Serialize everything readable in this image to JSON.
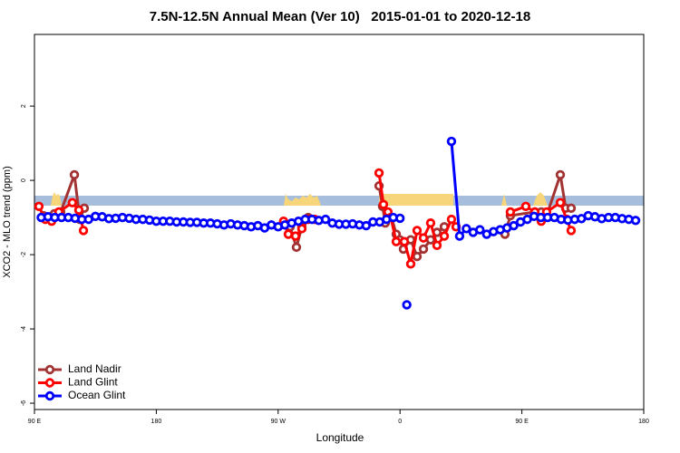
{
  "chart_data": {
    "type": "line",
    "title": "7.5N-12.5N Annual Mean (Ver 10)   2015-01-01 to 2020-12-18",
    "xlabel": "Longitude",
    "ylabel": "XCO2 - MLO trend (ppm)",
    "xlim": [
      90,
      540
    ],
    "xticks": [
      {
        "value": 90,
        "label": "90 E"
      },
      180,
      {
        "value": 270,
        "label": "90 W"
      },
      {
        "value": 360,
        "label": "0"
      },
      {
        "value": 450,
        "label": "90 E"
      },
      {
        "value": 540,
        "label": "180"
      }
    ],
    "ylim": [
      -6.17,
      3.93
    ],
    "yticks": [
      -6,
      -4,
      -2,
      0,
      2
    ],
    "legend": "bottom-left",
    "series": [
      {
        "name": "Land Nadir",
        "color": "#a33333",
        "x": [
          96.7,
          100,
          104.7,
          109.4,
          119.5,
          123.5,
          126.8,
          200,
          274,
          278.8,
          283.5,
          287.5,
          292.2,
          320,
          344.5,
          347.1,
          349.1,
          353.8,
          357.2,
          359.8,
          362.5,
          367.9,
          372.6,
          377.3,
          382.6,
          387.3,
          392.7,
          420,
          437.5,
          441.5,
          459.6,
          464.3,
          468.3,
          478.4,
          482.4,
          486.4
        ],
        "values": [
          -0.95,
          -1.0,
          -0.9,
          -0.85,
          0.15,
          -1.05,
          -0.75,
          null,
          -1.15,
          -1.25,
          -1.8,
          -1.25,
          -1.0,
          null,
          -0.15,
          -0.7,
          -1.15,
          -1.0,
          -1.45,
          -1.6,
          -1.85,
          -1.6,
          -2.05,
          -1.85,
          -1.6,
          -1.4,
          -1.25,
          null,
          -1.45,
          -0.95,
          -0.85,
          -0.85,
          -0.95,
          0.15,
          -0.75,
          -0.75
        ]
      },
      {
        "name": "Land Glint",
        "color": "#ff0000",
        "x": [
          93.3,
          98,
          102.7,
          108,
          118,
          122.8,
          126.2,
          200,
          274,
          277.5,
          282.8,
          287.5,
          292.2,
          297,
          320,
          344.5,
          347.8,
          351.1,
          353.2,
          357.2,
          363.2,
          367.9,
          372.6,
          377.3,
          382.6,
          387.3,
          392.7,
          398,
          401.4,
          420,
          441.5,
          452.9,
          459.6,
          464.3,
          468.3,
          478.4,
          483.1,
          486.4
        ],
        "values": [
          -0.7,
          -1.05,
          -1.1,
          -0.85,
          -0.6,
          -0.8,
          -1.35,
          null,
          -1.1,
          -1.45,
          -1.5,
          -1.3,
          -1.05,
          -1.05,
          null,
          0.2,
          -0.65,
          -0.85,
          -1.0,
          -1.65,
          -1.65,
          -2.25,
          -1.35,
          -1.55,
          -1.15,
          -1.75,
          -1.5,
          -1.05,
          -1.25,
          null,
          -0.85,
          -0.7,
          -0.85,
          -1.1,
          -0.85,
          -0.6,
          -1.05,
          -1.35
        ]
      },
      {
        "name": "Ocean Glint",
        "color": "#0000ff",
        "x": [
          95,
          100,
          105,
          110,
          115,
          120,
          125,
          130,
          135,
          140,
          145,
          150,
          155,
          160,
          165,
          170,
          175,
          180,
          185,
          190,
          195,
          200,
          205,
          210,
          215,
          220,
          225,
          230,
          235,
          240,
          245,
          250,
          255,
          260,
          265,
          270,
          275,
          280,
          285,
          290,
          295,
          300,
          305,
          310,
          315,
          320,
          325,
          330,
          335,
          340,
          345,
          350,
          355,
          360,
          363,
          365,
          380,
          398,
          404,
          409,
          414,
          419,
          424,
          429,
          434,
          439,
          444,
          449,
          454,
          459,
          464,
          469,
          474,
          479,
          484,
          489,
          494,
          499,
          504,
          509,
          514,
          519,
          524,
          529,
          534
        ],
        "values": [
          -1.0,
          -0.98,
          -1.0,
          -1.0,
          -1.0,
          -1.02,
          -1.05,
          -1.05,
          -0.97,
          -0.98,
          -1.03,
          -1.02,
          -1.0,
          -1.02,
          -1.05,
          -1.05,
          -1.07,
          -1.1,
          -1.1,
          -1.1,
          -1.12,
          -1.12,
          -1.13,
          -1.13,
          -1.15,
          -1.15,
          -1.17,
          -1.2,
          -1.17,
          -1.2,
          -1.22,
          -1.25,
          -1.22,
          -1.28,
          -1.2,
          -1.25,
          -1.2,
          -1.15,
          -1.1,
          -1.05,
          -1.05,
          -1.08,
          -1.05,
          -1.15,
          -1.18,
          -1.18,
          -1.17,
          -1.2,
          -1.22,
          -1.12,
          -1.12,
          -1.05,
          -1.0,
          -1.02,
          null,
          -3.35,
          null,
          1.05,
          -1.5,
          -1.3,
          -1.4,
          -1.33,
          -1.45,
          -1.38,
          -1.33,
          -1.28,
          -1.22,
          -1.12,
          -1.05,
          -0.97,
          -1.0,
          -1.0,
          -1.0,
          -1.05,
          -1.07,
          -1.05,
          -1.03,
          -0.95,
          -0.98,
          -1.03,
          -1.0,
          -1.0,
          -1.03,
          -1.05,
          -1.08
        ]
      }
    ]
  }
}
